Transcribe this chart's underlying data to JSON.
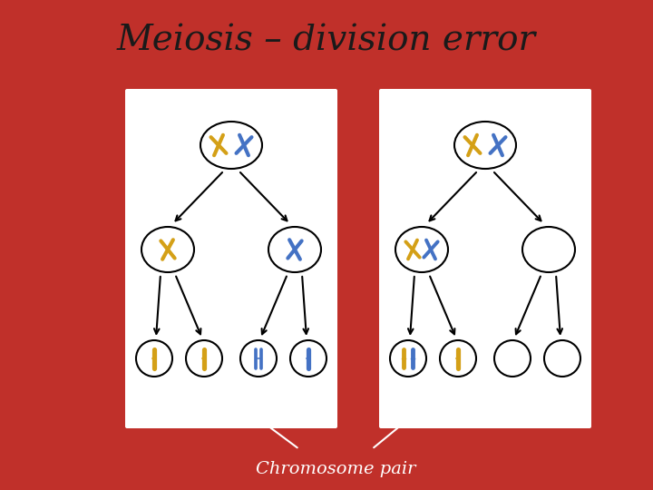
{
  "title": "Meiosis – division error",
  "title_fontsize": 28,
  "title_color": "#1a1a1a",
  "background_color": "#c0302a",
  "panel_bg": "#ffffff",
  "chromosome_gold": "#D4A017",
  "chromosome_blue": "#4472C4",
  "annotation": "Chromosome pair",
  "annotation_color": "#ffffff",
  "annotation_fontsize": 14
}
